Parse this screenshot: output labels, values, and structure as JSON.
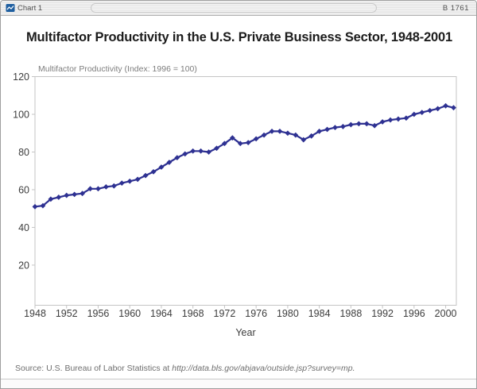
{
  "window": {
    "titlebar": {
      "icon": "chart-window-icon",
      "title": "Chart 1",
      "right_label": "B 1761"
    }
  },
  "chart": {
    "title": "Multifactor Productivity in the U.S. Private Business Sector, 1948-2001",
    "axis_note": "Multifactor Productivity (Index: 1996 = 100)",
    "xlabel": "Year",
    "source_prefix": "Source: U.S. Bureau of Labor Statistics at ",
    "source_url": "http://data.bls.gov/abjava/outside.jsp?survey=mp."
  },
  "chart_data": {
    "type": "line",
    "title": "Multifactor Productivity in the U.S. Private Business Sector, 1948-2001",
    "series_label": "Multifactor Productivity (Index: 1996 = 100)",
    "xlabel": "Year",
    "x": [
      1948,
      1949,
      1950,
      1951,
      1952,
      1953,
      1954,
      1955,
      1956,
      1957,
      1958,
      1959,
      1960,
      1961,
      1962,
      1963,
      1964,
      1965,
      1966,
      1967,
      1968,
      1969,
      1970,
      1971,
      1972,
      1973,
      1974,
      1975,
      1976,
      1977,
      1978,
      1979,
      1980,
      1981,
      1982,
      1983,
      1984,
      1985,
      1986,
      1987,
      1988,
      1989,
      1990,
      1991,
      1992,
      1993,
      1994,
      1995,
      1996,
      1997,
      1998,
      1999,
      2000,
      2001
    ],
    "values": [
      51,
      51.5,
      55,
      56,
      57,
      57.5,
      58,
      60.5,
      60.5,
      61.5,
      62,
      63.5,
      64.5,
      65.5,
      67.5,
      69.5,
      72,
      74.5,
      77,
      79,
      80.5,
      80.5,
      80,
      82,
      84.5,
      87.5,
      84.5,
      85,
      87,
      89,
      91,
      91,
      90,
      89,
      86.5,
      88.5,
      91,
      92,
      93,
      93.5,
      94.5,
      95,
      95,
      94,
      96,
      97,
      97.5,
      98,
      100,
      101,
      102,
      103,
      104.5,
      103.5
    ],
    "xticks": [
      1948,
      1952,
      1956,
      1960,
      1964,
      1968,
      1972,
      1976,
      1980,
      1984,
      1988,
      1992,
      1996,
      2000
    ],
    "yticks": [
      20,
      40,
      60,
      80,
      100,
      120
    ],
    "xlim": [
      1948,
      2001.35
    ],
    "ylim": [
      -1.3,
      120
    ],
    "grid": false,
    "legend": "none",
    "line_color": "#2e3192",
    "marker": "diamond",
    "axis_color": "#c4c4c4",
    "tick_label_color": "#3d3d3d"
  }
}
